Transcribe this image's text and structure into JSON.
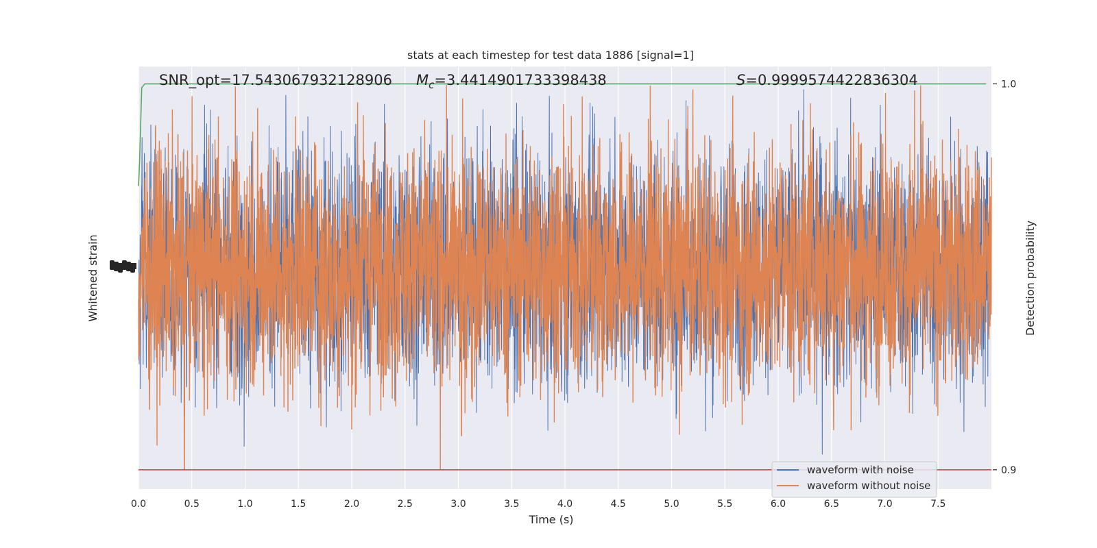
{
  "chart_data": {
    "type": "line",
    "title": "stats at each timestep for test data 1886 [signal=1]",
    "xlabel": "Time (s)",
    "ylabel_left": "Whitened strain",
    "ylabel_right": "Detection probability",
    "xlim": [
      0.0,
      8.0
    ],
    "xticks": [
      0.0,
      0.5,
      1.0,
      1.5,
      2.0,
      2.5,
      3.0,
      3.5,
      4.0,
      4.5,
      5.0,
      5.5,
      6.0,
      6.5,
      7.0,
      7.5
    ],
    "xtick_labels": [
      "0.0",
      "0.5",
      "1.0",
      "1.5",
      "2.0",
      "2.5",
      "3.0",
      "3.5",
      "4.0",
      "4.5",
      "5.0",
      "5.5",
      "6.0",
      "6.5",
      "7.0",
      "7.5"
    ],
    "right_ylim": [
      0.895,
      1.0045
    ],
    "right_yticks": [
      0.9,
      1.0
    ],
    "right_ytick_labels": [
      "0.9",
      "1.0"
    ],
    "annotations": {
      "snr": "SNR_opt=17.543067932128906",
      "mc_symbol": "M",
      "mc_sub": "c",
      "mc_value": "=3.4414901733398438",
      "s_symbol": "S",
      "s_value": "=0.9999574422836304"
    },
    "series": [
      {
        "name": "waveform with noise",
        "color": "#4c72b0",
        "axis": "left",
        "kind": "noisy strain (hidden beneath orange trace)"
      },
      {
        "name": "waveform without noise",
        "color": "#dd8452",
        "axis": "left",
        "kind": "dense noisy strain, amplitude roughly ±3, peak near 4.8 s"
      },
      {
        "name": "",
        "color": "#55a868",
        "axis": "right",
        "x": [
          0.0,
          0.01,
          0.03,
          0.06,
          7.95
        ],
        "y": [
          0.9735,
          0.98,
          0.999,
          1.0,
          1.0
        ]
      },
      {
        "name": "",
        "color": "#c44e52",
        "axis": "right",
        "x": [
          0.0,
          8.0
        ],
        "y": [
          0.9,
          0.9
        ]
      }
    ],
    "grid": true,
    "legend_position": "lower right",
    "legend": [
      "waveform with noise",
      "waveform without noise"
    ],
    "background_color": "#eaeaf2"
  }
}
